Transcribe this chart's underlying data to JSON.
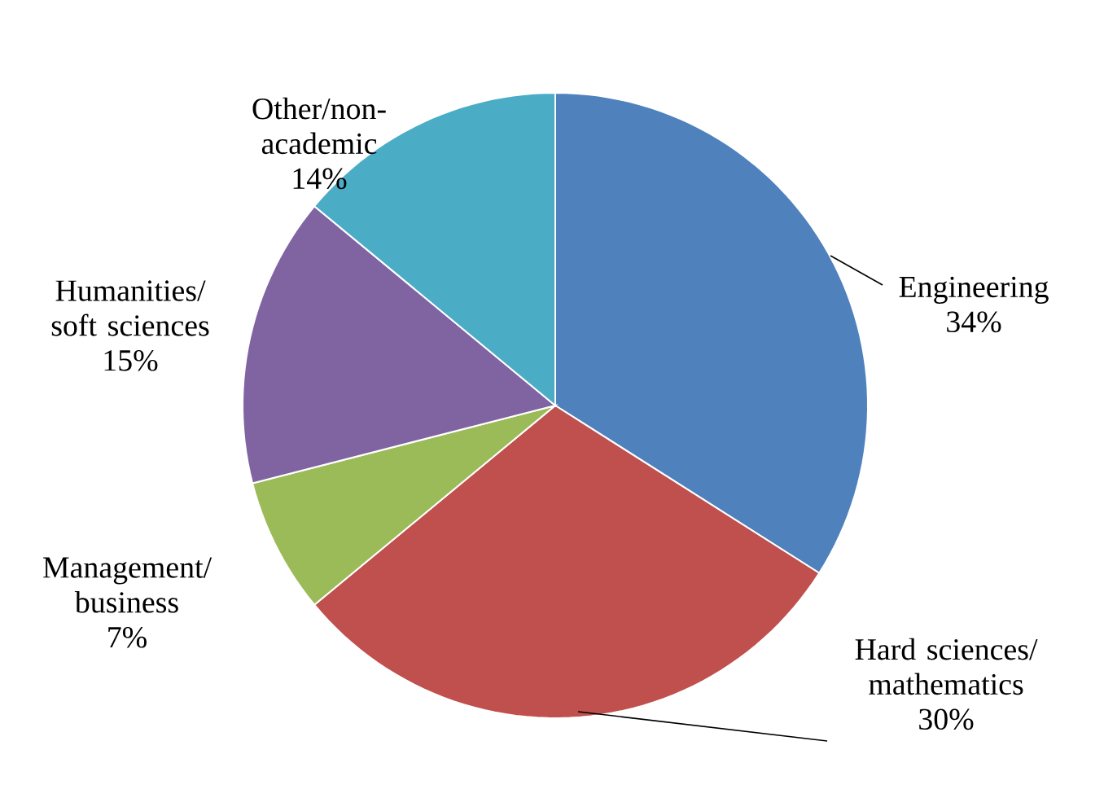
{
  "chart_data": {
    "type": "pie",
    "categories": [
      "Engineering",
      "Hard sciences/ mathematics",
      "Management/ business",
      "Humanities/ soft sciences",
      "Other/non-academic"
    ],
    "values": [
      34,
      30,
      7,
      15,
      14
    ],
    "colors": [
      "#4f81bd",
      "#c0504d",
      "#9bbb59",
      "#8064a2",
      "#4bacc6"
    ],
    "value_labels": [
      "34%",
      "30%",
      "7%",
      "15%",
      "14%"
    ]
  }
}
